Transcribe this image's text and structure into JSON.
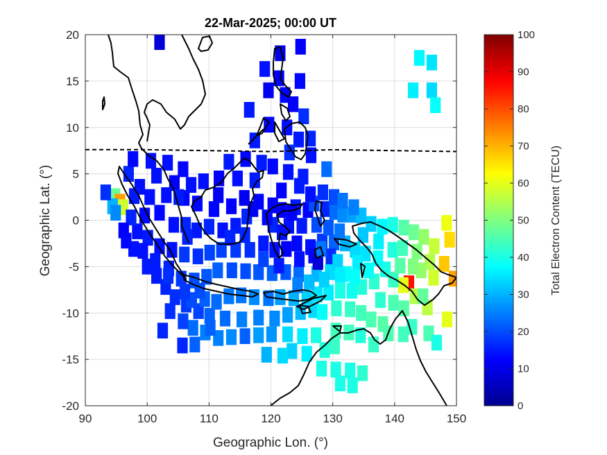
{
  "chart_data": {
    "type": "heatmap",
    "title": "22-Mar-2025; 00:00 UT",
    "xlabel": "Geographic Lon. (°)",
    "ylabel": "Geographic Lat. (°)",
    "xlim": [
      90,
      150
    ],
    "ylim": [
      -20,
      20
    ],
    "x_ticks": [
      90,
      100,
      110,
      120,
      130,
      140,
      150
    ],
    "y_ticks": [
      20,
      15,
      10,
      5,
      0,
      -5,
      -10,
      -15,
      -20
    ],
    "grid": true,
    "colormap": "jet",
    "colorbar": {
      "label": "Total Electron Content (TECU)",
      "range": [
        0,
        100
      ],
      "ticks": [
        0,
        10,
        20,
        30,
        40,
        50,
        60,
        70,
        80,
        90,
        100
      ],
      "placement": "right"
    },
    "magnetic_equator": [
      [
        90,
        7.6
      ],
      [
        100,
        7.6
      ],
      [
        110,
        7.5
      ],
      [
        120,
        7.4
      ],
      [
        130,
        7.6
      ],
      [
        140,
        7.5
      ],
      [
        150,
        7.4
      ]
    ],
    "tec_cells": [
      [
        102,
        19.2,
        8
      ],
      [
        121.5,
        18,
        10
      ],
      [
        124.8,
        18.7,
        12
      ],
      [
        119,
        16.3,
        14
      ],
      [
        121.3,
        15.3,
        12
      ],
      [
        124.7,
        15,
        13
      ],
      [
        119.6,
        14,
        11
      ],
      [
        122.3,
        13.5,
        13
      ],
      [
        123.6,
        12.5,
        12
      ],
      [
        116.5,
        11.9,
        15
      ],
      [
        119.7,
        10.3,
        13
      ],
      [
        122.6,
        10,
        14
      ],
      [
        125.3,
        11.2,
        17
      ],
      [
        117.4,
        8.6,
        15
      ],
      [
        124.5,
        8.7,
        15
      ],
      [
        126.4,
        8.8,
        16
      ],
      [
        123,
        7.3,
        17
      ],
      [
        126.5,
        7,
        14
      ],
      [
        129,
        5.5,
        23
      ],
      [
        144,
        17.5,
        37
      ],
      [
        146,
        17,
        35
      ],
      [
        143,
        14,
        36
      ],
      [
        146,
        14,
        34
      ],
      [
        146.6,
        12.4,
        38
      ],
      [
        94.5,
        2.2,
        18
      ],
      [
        94.8,
        2.6,
        48
      ],
      [
        95.6,
        2.0,
        72
      ],
      [
        96.1,
        1.4,
        58
      ],
      [
        94.4,
        1.5,
        30
      ],
      [
        94.9,
        0.8,
        26
      ],
      [
        93.3,
        3,
        17
      ],
      [
        97,
        5,
        16
      ],
      [
        101.5,
        4.8,
        14
      ],
      [
        104.4,
        4,
        12
      ],
      [
        106,
        2.4,
        13
      ],
      [
        108.1,
        1.8,
        13
      ],
      [
        111.5,
        2.7,
        11
      ],
      [
        113.6,
        1.5,
        12
      ],
      [
        115.7,
        2.4,
        11
      ],
      [
        118,
        2,
        13
      ],
      [
        120.3,
        1.6,
        12
      ],
      [
        121.7,
        1.1,
        12
      ],
      [
        124,
        1.4,
        15
      ],
      [
        126,
        1.1,
        12
      ],
      [
        127,
        1.8,
        20
      ],
      [
        128.8,
        1.2,
        16
      ],
      [
        130.3,
        0.9,
        23
      ],
      [
        131.6,
        0.6,
        26
      ],
      [
        133.1,
        0.6,
        28
      ],
      [
        134.6,
        0.5,
        31
      ],
      [
        136.2,
        -0.4,
        33
      ],
      [
        138,
        -0.7,
        37
      ],
      [
        139.7,
        -0.5,
        40
      ],
      [
        141.5,
        -0.8,
        46
      ],
      [
        143.1,
        -1.3,
        48
      ],
      [
        144.7,
        -1.8,
        52
      ],
      [
        146.4,
        -2.8,
        57
      ],
      [
        148.4,
        -0.3,
        61
      ],
      [
        148.9,
        -2.1,
        66
      ],
      [
        148,
        -4.7,
        68
      ],
      [
        149.6,
        -6.3,
        72
      ],
      [
        142.3,
        -6.8,
        86
      ],
      [
        141.4,
        -7,
        60
      ],
      [
        143.3,
        -8.2,
        55
      ],
      [
        145.3,
        -9.4,
        56
      ],
      [
        148.5,
        -10.7,
        60
      ],
      [
        142.8,
        -11.5,
        43
      ],
      [
        145.5,
        -12.2,
        45
      ],
      [
        146.8,
        -13.2,
        40
      ],
      [
        144.6,
        -8.2,
        47
      ],
      [
        138.5,
        -5.3,
        40
      ],
      [
        139.8,
        -6.4,
        43
      ],
      [
        137.3,
        -4.1,
        38
      ],
      [
        135.3,
        -3.6,
        35
      ],
      [
        133.6,
        -3.2,
        34
      ],
      [
        132,
        -2.5,
        30
      ],
      [
        130.2,
        -2.4,
        22
      ],
      [
        128.3,
        -2.3,
        18
      ],
      [
        126.4,
        -2.9,
        14
      ],
      [
        124.2,
        -2.5,
        13
      ],
      [
        122.5,
        -3.1,
        12
      ],
      [
        120.6,
        -3.2,
        14
      ],
      [
        118.8,
        -2.5,
        15
      ],
      [
        116.6,
        -3.2,
        17
      ],
      [
        114.3,
        -3.2,
        18
      ],
      [
        112,
        -3.2,
        19
      ],
      [
        110.1,
        -3.5,
        19
      ],
      [
        108.2,
        -3.9,
        17
      ],
      [
        106,
        -3.7,
        18
      ],
      [
        104,
        -3.2,
        14
      ],
      [
        102,
        -2.8,
        14
      ],
      [
        100.1,
        -1.9,
        15
      ],
      [
        98.4,
        -1.2,
        14
      ],
      [
        97.4,
        0.3,
        16
      ],
      [
        96.2,
        -1.1,
        12
      ],
      [
        102,
        0.8,
        13
      ],
      [
        104.3,
        -0.5,
        14
      ],
      [
        106.2,
        -0.5,
        16
      ],
      [
        108,
        -1.1,
        15
      ],
      [
        110,
        -0.7,
        16
      ],
      [
        112.2,
        -1.1,
        14
      ],
      [
        114.3,
        -0.6,
        15
      ],
      [
        116.1,
        0.4,
        16
      ],
      [
        120.3,
        -0.5,
        16
      ],
      [
        122.9,
        -0.6,
        14
      ],
      [
        125,
        -0.6,
        15
      ],
      [
        127.4,
        -0.5,
        20
      ],
      [
        129.3,
        -0.8,
        21
      ],
      [
        131.1,
        -1.2,
        24
      ],
      [
        99.3,
        -3.3,
        14
      ],
      [
        100,
        -5,
        15
      ],
      [
        101.5,
        -6,
        15
      ],
      [
        103,
        -7.2,
        16
      ],
      [
        104.5,
        -8.3,
        17
      ],
      [
        106.3,
        -9.1,
        18
      ],
      [
        108.3,
        -9.8,
        19
      ],
      [
        110.1,
        -10.3,
        22
      ],
      [
        112.6,
        -10.6,
        23
      ],
      [
        115.3,
        -10.7,
        25
      ],
      [
        118,
        -10.5,
        25
      ],
      [
        120.6,
        -10.6,
        26
      ],
      [
        122.7,
        -10.2,
        28
      ],
      [
        124.8,
        -9.9,
        31
      ],
      [
        126.9,
        -9.7,
        34
      ],
      [
        128.3,
        -9.9,
        38
      ],
      [
        130.6,
        -9.5,
        42
      ],
      [
        132.8,
        -9.6,
        43
      ],
      [
        134.6,
        -10,
        44
      ],
      [
        136.2,
        -10.7,
        45
      ],
      [
        138.1,
        -11.2,
        46
      ],
      [
        130.5,
        -11.9,
        44
      ],
      [
        132.6,
        -12.1,
        44
      ],
      [
        134.5,
        -12.4,
        41
      ],
      [
        136.6,
        -13.4,
        43
      ],
      [
        127.3,
        -12.4,
        40
      ],
      [
        125.1,
        -12.5,
        36
      ],
      [
        122.7,
        -12.3,
        34
      ],
      [
        120.1,
        -12.3,
        27
      ],
      [
        118,
        -12.4,
        28
      ],
      [
        115.8,
        -12.5,
        22
      ],
      [
        113.6,
        -12.6,
        26
      ],
      [
        111.5,
        -12.7,
        25
      ],
      [
        109.4,
        -12.1,
        25
      ],
      [
        107.4,
        -11.6,
        23
      ],
      [
        102.5,
        -11.9,
        16
      ],
      [
        105.7,
        -13.5,
        16
      ],
      [
        113.2,
        -8.2,
        24
      ],
      [
        115.2,
        -8.1,
        24
      ],
      [
        117.3,
        -8.3,
        26
      ],
      [
        119.6,
        -8.4,
        24
      ],
      [
        121.5,
        -8.3,
        28
      ],
      [
        123.7,
        -8.4,
        30
      ],
      [
        125.8,
        -8.5,
        33
      ],
      [
        127.5,
        -8,
        35
      ],
      [
        129.3,
        -7.8,
        36
      ],
      [
        131.2,
        -7.6,
        40
      ],
      [
        133.1,
        -7.6,
        39
      ],
      [
        134.7,
        -7.2,
        41
      ],
      [
        136.7,
        -6.6,
        42
      ],
      [
        132.2,
        -5.8,
        38
      ],
      [
        129.6,
        -5.6,
        34
      ],
      [
        127.4,
        -5.8,
        30
      ],
      [
        124.5,
        -5.8,
        23
      ],
      [
        122.4,
        -5.6,
        21
      ],
      [
        120.2,
        -5.7,
        22
      ],
      [
        118,
        -5.6,
        21
      ],
      [
        115.9,
        -5.5,
        20
      ],
      [
        113.7,
        -5.4,
        20
      ],
      [
        111.4,
        -5.4,
        22
      ],
      [
        109.6,
        -6.1,
        21
      ],
      [
        107.6,
        -6.5,
        20
      ],
      [
        105.5,
        -6.3,
        18
      ],
      [
        103.5,
        -5.2,
        16
      ],
      [
        109.3,
        -8.5,
        22
      ],
      [
        111.2,
        -8.8,
        23
      ],
      [
        107.2,
        -8.6,
        20
      ],
      [
        106.5,
        -1.8,
        16
      ],
      [
        110.8,
        1.2,
        13
      ],
      [
        114.6,
        4.5,
        14
      ],
      [
        117.4,
        4.3,
        15
      ],
      [
        118.5,
        6.2,
        15
      ],
      [
        115.9,
        6.6,
        13
      ],
      [
        120.3,
        5.8,
        13
      ],
      [
        122.8,
        5.2,
        14
      ],
      [
        125.2,
        4.7,
        15
      ],
      [
        121.7,
        3.2,
        12
      ],
      [
        124.6,
        3.7,
        15
      ],
      [
        126.4,
        2.8,
        14
      ],
      [
        128.4,
        3,
        17
      ],
      [
        130.2,
        2.5,
        20
      ],
      [
        131.6,
        2.1,
        24
      ],
      [
        133.4,
        1.4,
        25
      ],
      [
        126.9,
        -3.8,
        13
      ],
      [
        127.6,
        -4.5,
        8
      ],
      [
        129.7,
        -3.9,
        17
      ],
      [
        128.1,
        -3.1,
        24
      ],
      [
        124.6,
        -4.2,
        14
      ],
      [
        123.4,
        0.8,
        12
      ],
      [
        121.8,
        -1.3,
        14
      ],
      [
        97.7,
        6.6,
        13
      ],
      [
        100.6,
        6.4,
        14
      ],
      [
        98.8,
        3.6,
        14
      ],
      [
        97.9,
        2.6,
        15
      ],
      [
        100.4,
        2.5,
        14
      ],
      [
        103.1,
        2.7,
        14
      ],
      [
        105.1,
        2.5,
        15
      ],
      [
        103.3,
        6.2,
        14
      ],
      [
        105.8,
        5.5,
        13
      ],
      [
        107.1,
        3.8,
        14
      ],
      [
        109.1,
        4.2,
        14
      ],
      [
        111.6,
        4.5,
        12
      ],
      [
        113.2,
        6.3,
        15
      ],
      [
        117.1,
        1.2,
        11
      ],
      [
        119.4,
        0.3,
        13
      ],
      [
        113.4,
        -1.9,
        16
      ],
      [
        115.8,
        -1.6,
        16
      ],
      [
        118.8,
        -4.2,
        19
      ],
      [
        121.3,
        -4.9,
        15
      ],
      [
        124.3,
        -7.0,
        25
      ],
      [
        126.2,
        -6.7,
        31
      ],
      [
        128.6,
        -6.4,
        33
      ],
      [
        130.8,
        -4.5,
        33
      ],
      [
        134,
        -4.6,
        36
      ],
      [
        135.8,
        -5.4,
        38
      ],
      [
        133.6,
        -6.1,
        38
      ],
      [
        131.2,
        -5.9,
        36
      ],
      [
        134.9,
        -1.6,
        32
      ],
      [
        137.4,
        -2.3,
        36
      ],
      [
        139.7,
        -3.2,
        41
      ],
      [
        141.3,
        -3,
        44
      ],
      [
        143.6,
        -3.4,
        50
      ],
      [
        145.7,
        -4.5,
        55
      ],
      [
        144.3,
        -5.4,
        52
      ],
      [
        146.3,
        -6.2,
        58
      ],
      [
        140.9,
        -4.9,
        46
      ],
      [
        143,
        -5,
        50
      ],
      [
        137.7,
        -8.6,
        42
      ],
      [
        139.8,
        -8.9,
        45
      ],
      [
        141.5,
        -9.5,
        46
      ],
      [
        139,
        -12.2,
        45
      ],
      [
        141.4,
        -12.3,
        44
      ],
      [
        128.7,
        -14,
        41
      ],
      [
        130.3,
        -13.6,
        43
      ],
      [
        128.2,
        -16,
        40
      ],
      [
        130.5,
        -16.1,
        40
      ],
      [
        132.8,
        -16.2,
        40
      ],
      [
        134.8,
        -16.5,
        42
      ],
      [
        131.2,
        -17.6,
        40
      ],
      [
        133.2,
        -17.8,
        40
      ],
      [
        125.8,
        -14.4,
        36
      ],
      [
        123.4,
        -14.1,
        33
      ],
      [
        121.9,
        -14.6,
        34
      ],
      [
        119.3,
        -14.5,
        30
      ],
      [
        107.7,
        -13.4,
        22
      ],
      [
        110.2,
        -11.6,
        22
      ],
      [
        108.5,
        -7.6,
        20
      ],
      [
        106.1,
        -7.7,
        18
      ],
      [
        103.7,
        -9.8,
        17
      ],
      [
        105.8,
        -10.9,
        19
      ],
      [
        103.4,
        -6,
        17
      ],
      [
        101.3,
        -4.4,
        15
      ],
      [
        99.6,
        0.5,
        13
      ],
      [
        97.8,
        -3.1,
        14
      ],
      [
        96.6,
        -2.2,
        13
      ]
    ]
  }
}
